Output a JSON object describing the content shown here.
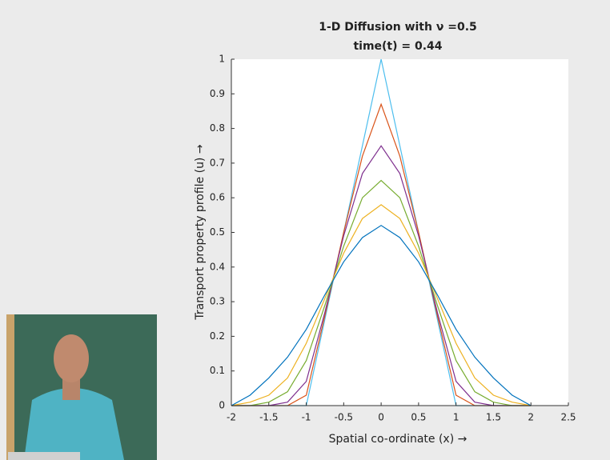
{
  "chart_data": {
    "type": "line",
    "title": "1-D Diffusion with ν =0.5",
    "subtitle": "time(t) = 0.44",
    "x_label": "Spatial co-ordinate (x) →",
    "y_label": "Transport property profile (u) →",
    "x": [
      -2,
      -1.75,
      -1.5,
      -1.25,
      -1,
      -0.75,
      -0.5,
      -0.25,
      0,
      0.25,
      0.5,
      0.75,
      1,
      1.25,
      1.5,
      1.75,
      2
    ],
    "series": [
      {
        "color": "#4dbeee",
        "values": [
          0,
          0,
          0,
          0,
          0,
          0.25,
          0.5,
          0.75,
          1,
          0.75,
          0.5,
          0.25,
          0,
          0,
          0,
          0,
          0
        ]
      },
      {
        "color": "#d95319",
        "values": [
          0,
          0,
          0,
          0,
          0.03,
          0.26,
          0.5,
          0.72,
          0.87,
          0.72,
          0.5,
          0.26,
          0.03,
          0,
          0,
          0,
          0
        ]
      },
      {
        "color": "#7e2f8e",
        "values": [
          0,
          0,
          0,
          0.01,
          0.07,
          0.27,
          0.49,
          0.67,
          0.75,
          0.67,
          0.49,
          0.27,
          0.07,
          0.01,
          0,
          0,
          0
        ]
      },
      {
        "color": "#77ac30",
        "values": [
          0,
          0,
          0.01,
          0.04,
          0.13,
          0.29,
          0.46,
          0.6,
          0.65,
          0.6,
          0.46,
          0.29,
          0.13,
          0.04,
          0.01,
          0,
          0
        ]
      },
      {
        "color": "#edb120",
        "values": [
          0,
          0.01,
          0.03,
          0.08,
          0.18,
          0.31,
          0.44,
          0.54,
          0.58,
          0.54,
          0.44,
          0.31,
          0.18,
          0.08,
          0.03,
          0.01,
          0
        ]
      },
      {
        "color": "#0072bd",
        "values": [
          0,
          0.03,
          0.08,
          0.14,
          0.22,
          0.32,
          0.415,
          0.485,
          0.52,
          0.485,
          0.415,
          0.32,
          0.22,
          0.14,
          0.08,
          0.03,
          0
        ]
      }
    ],
    "xlim": [
      -2,
      2.5
    ],
    "xticks": [
      -2,
      -1.5,
      -1,
      -0.5,
      0,
      0.5,
      1,
      1.5,
      2,
      2.5
    ],
    "ylim": [
      0,
      1
    ],
    "yticks": [
      0,
      0.1,
      0.2,
      0.3,
      0.4,
      0.5,
      0.6,
      0.7,
      0.8,
      0.9,
      1
    ],
    "grid": false
  }
}
